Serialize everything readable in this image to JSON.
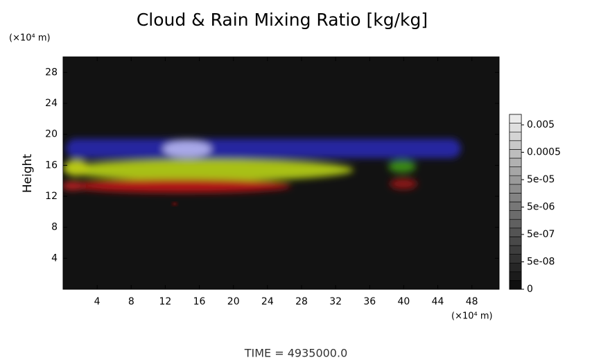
{
  "chart_data": {
    "type": "heatmap",
    "title": "Cloud & Rain Mixing Ratio [kg/kg]",
    "y_label": "Height",
    "y_unit": "(×10⁴ m)",
    "x_unit": "(×10⁴ m)",
    "footer": "TIME = 4935000.0",
    "xlim": [
      0,
      51.2
    ],
    "ylim": [
      0,
      30
    ],
    "xticks": [
      4,
      8,
      12,
      16,
      20,
      24,
      28,
      32,
      36,
      40,
      44,
      48
    ],
    "yticks": [
      4,
      8,
      12,
      16,
      20,
      24,
      28
    ],
    "colorbar_ticks": [
      0.005,
      0.0005,
      {
        "value": 5e-05,
        "label": "5e-05"
      },
      {
        "value": 5e-06,
        "label": "5e-06"
      },
      {
        "value": 5e-07,
        "label": "5e-07"
      },
      {
        "value": 5e-08,
        "label": "5e-08"
      },
      0
    ]
  }
}
